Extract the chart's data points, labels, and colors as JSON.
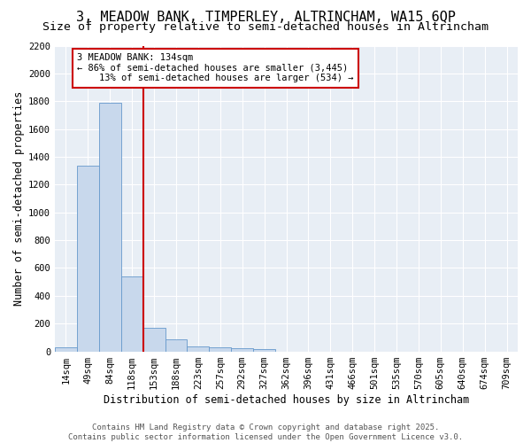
{
  "title": "3, MEADOW BANK, TIMPERLEY, ALTRINCHAM, WA15 6QP",
  "subtitle": "Size of property relative to semi-detached houses in Altrincham",
  "xlabel": "Distribution of semi-detached houses by size in Altrincham",
  "ylabel": "Number of semi-detached properties",
  "bar_labels": [
    "14sqm",
    "49sqm",
    "84sqm",
    "118sqm",
    "153sqm",
    "188sqm",
    "223sqm",
    "257sqm",
    "292sqm",
    "327sqm",
    "362sqm",
    "396sqm",
    "431sqm",
    "466sqm",
    "501sqm",
    "535sqm",
    "570sqm",
    "605sqm",
    "640sqm",
    "674sqm",
    "709sqm"
  ],
  "bar_values": [
    28,
    1335,
    1790,
    540,
    170,
    88,
    35,
    27,
    22,
    15,
    0,
    0,
    0,
    0,
    0,
    0,
    0,
    0,
    0,
    0,
    0
  ],
  "bar_color": "#c8d8ec",
  "bar_edge_color": "#6699cc",
  "property_line_x": 3.5,
  "annotation_text": "3 MEADOW BANK: 134sqm\n← 86% of semi-detached houses are smaller (3,445)\n    13% of semi-detached houses are larger (534) →",
  "vline_color": "#cc0000",
  "annotation_box_color": "#ffffff",
  "annotation_box_edge": "#cc0000",
  "ylim_max": 2200,
  "yticks": [
    0,
    200,
    400,
    600,
    800,
    1000,
    1200,
    1400,
    1600,
    1800,
    2000,
    2200
  ],
  "footer_line1": "Contains HM Land Registry data © Crown copyright and database right 2025.",
  "footer_line2": "Contains public sector information licensed under the Open Government Licence v3.0.",
  "background_color": "#ffffff",
  "plot_bg_color": "#e8eef5",
  "grid_color": "#ffffff",
  "title_fontsize": 11,
  "subtitle_fontsize": 9.5,
  "axis_label_fontsize": 8.5,
  "tick_fontsize": 7.5,
  "annotation_fontsize": 7.5,
  "footer_fontsize": 6.5
}
